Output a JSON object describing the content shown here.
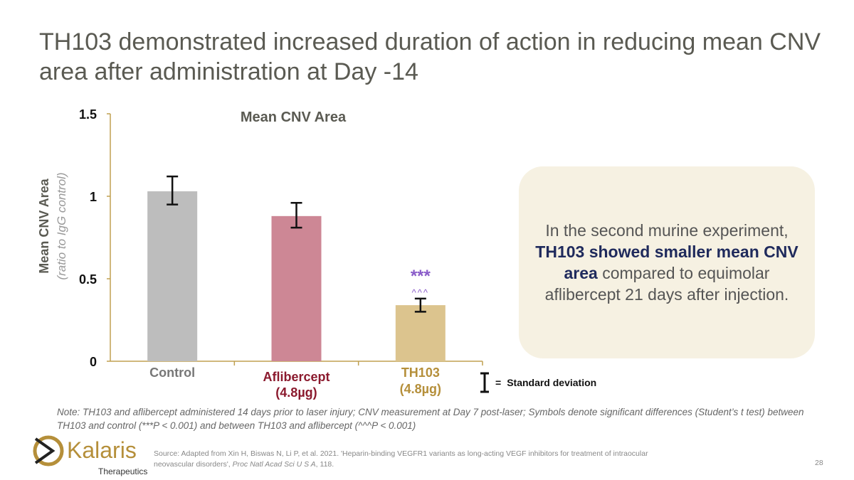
{
  "title": "TH103 demonstrated increased duration of action in reducing mean CNV area after administration at Day -14",
  "chart_data": {
    "type": "bar",
    "title": "Mean CNV Area",
    "ylabel": "Mean CNV Area",
    "ylabel_sub": "(ratio to IgG control)",
    "ylim": [
      0,
      1.5
    ],
    "yticks": [
      "0",
      "0.5",
      "1",
      "1.5"
    ],
    "ytick_values": [
      0,
      0.5,
      1,
      1.5
    ],
    "categories": [
      {
        "line1": "Control",
        "line2": ""
      },
      {
        "line1": "Aflibercept",
        "line2": "(4.8µg)"
      },
      {
        "line1": "TH103",
        "line2": "(4.8µg)"
      }
    ],
    "values": [
      1.03,
      0.88,
      0.34
    ],
    "error_low": [
      0.95,
      0.81,
      0.3
    ],
    "error_high": [
      1.12,
      0.96,
      0.38
    ],
    "bar_colors": [
      "#bdbdbd",
      "#cd8795",
      "#dcc48e"
    ],
    "label_colors": [
      "#777777",
      "#8b1a2e",
      "#b58f3a"
    ],
    "axis_color": "#c0a050",
    "annotation": {
      "category": "TH103",
      "line1": "***",
      "line2": "^^^",
      "color": "#8a5cc9"
    },
    "legend": {
      "symbol": "error-bar",
      "label": "Standard deviation"
    },
    "grid": false
  },
  "callout": {
    "pre": "In the second murine experiment, ",
    "bold": "TH103 showed smaller mean CNV area",
    "post": " compared to equimolar aflibercept 21 days after injection."
  },
  "note": "Note: TH103 and aflibercept administered 14 days prior to laser injury; CNV measurement at Day 7 post-laser; Symbols denote significant differences (Student’s t test) between TH103 and control (***P < 0.001) and between TH103 and aflibercept (^^^P < 0.001)",
  "source": {
    "pre": "Source: Adapted from Xin H, Biswas N, Li P, et al. 2021. 'Heparin-binding VEGFR1 variants as long-acting VEGF inhibitors for treatment of intraocular neovascular disorders', ",
    "journal": "Proc Natl Acad Sci U S A",
    "post": ", 118."
  },
  "logo": {
    "name": "Kalaris",
    "sub": "Therapeutics"
  },
  "page_number": "28"
}
